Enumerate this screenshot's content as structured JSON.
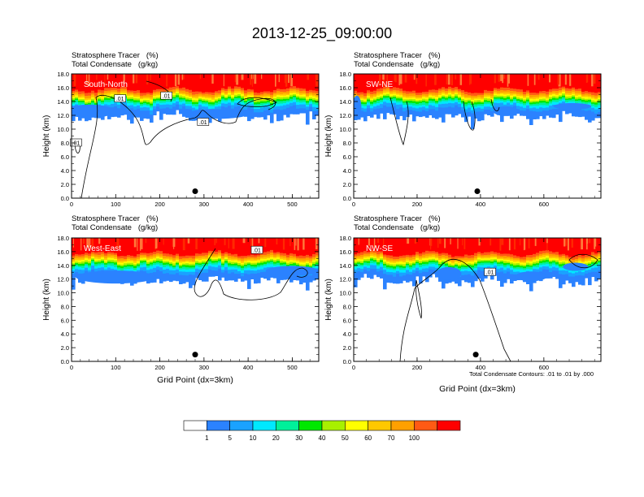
{
  "title": "2013-12-25_09:00:00",
  "colorbar": {
    "labels": [
      "1",
      "5",
      "10",
      "20",
      "30",
      "40",
      "50",
      "60",
      "70",
      "100"
    ],
    "colors": [
      "#ffffff",
      "#2b82ff",
      "#1aa2ff",
      "#00e8ff",
      "#00f09a",
      "#00e800",
      "#a8f000",
      "#ffff00",
      "#ffc800",
      "#ffa000",
      "#ff5a14",
      "#ff0000"
    ]
  },
  "footnote": "Total Condensate Contours: .01 to .01 by .000",
  "chart_data": [
    {
      "type": "heatmap",
      "label": "South-North",
      "header": [
        "Stratosphere Tracer   (%)",
        "Total Condensate   (g/kg)"
      ],
      "ylabel": "Height (km)",
      "xlabel": "",
      "yticks": [
        "0.0",
        "2.0",
        "4.0",
        "6.0",
        "8.0",
        "10.0",
        "12.0",
        "14.0",
        "16.0",
        "18.0"
      ],
      "ylim": [
        0,
        18
      ],
      "xlim": [
        0,
        560
      ],
      "xticks": [
        0,
        100,
        200,
        300,
        400,
        500
      ],
      "marker": {
        "x": 280,
        "y": 1.0
      },
      "contour_labels": [
        {
          "x": 110,
          "y": 14.4,
          "text": ".01"
        },
        {
          "x": 215,
          "y": 14.8,
          "text": ".01"
        },
        {
          "x": 298,
          "y": 11.0,
          "text": ".01"
        },
        {
          "x": 10,
          "y": 8.0,
          "text": ".01"
        }
      ]
    },
    {
      "type": "heatmap",
      "label": "SW-NE",
      "header": [
        "Stratosphere Tracer   (%)",
        "Total Condensate   (g/kg)"
      ],
      "ylabel": "Height (km)",
      "xlabel": "",
      "yticks": [
        "0.0",
        "2.0",
        "4.0",
        "6.0",
        "8.0",
        "10.0",
        "12.0",
        "14.0",
        "16.0",
        "18.0"
      ],
      "ylim": [
        0,
        18
      ],
      "xlim": [
        0,
        780
      ],
      "xticks": [
        0,
        200,
        400,
        600
      ],
      "marker": {
        "x": 390,
        "y": 1.0
      },
      "contour_labels": []
    },
    {
      "type": "heatmap",
      "label": "West-East",
      "header": [
        "Stratosphere Tracer   (%)",
        "Total Condensate   (g/kg)"
      ],
      "ylabel": "Height (km)",
      "xlabel": "Grid Point (dx=3km)",
      "yticks": [
        "0.0",
        "2.0",
        "4.0",
        "6.0",
        "8.0",
        "10.0",
        "12.0",
        "14.0",
        "16.0",
        "18.0"
      ],
      "ylim": [
        0,
        18
      ],
      "xlim": [
        0,
        560
      ],
      "xticks": [
        0,
        100,
        200,
        300,
        400,
        500
      ],
      "marker": {
        "x": 280,
        "y": 1.0
      },
      "contour_labels": [
        {
          "x": 420,
          "y": 16.2,
          "text": ".01"
        }
      ]
    },
    {
      "type": "heatmap",
      "label": "NW-SE",
      "header": [
        "Stratosphere Tracer   (%)",
        "Total Condensate   (g/kg)"
      ],
      "ylabel": "Height (km)",
      "xlabel": "Grid Point (dx=3km)",
      "yticks": [
        "0.0",
        "2.0",
        "4.0",
        "6.0",
        "8.0",
        "10.0",
        "12.0",
        "14.0",
        "16.0",
        "18.0"
      ],
      "ylim": [
        0,
        18
      ],
      "xlim": [
        0,
        780
      ],
      "xticks": [
        0,
        200,
        400,
        600
      ],
      "marker": {
        "x": 385,
        "y": 1.0
      },
      "contour_labels": [
        {
          "x": 430,
          "y": 13.0,
          "text": ".01"
        }
      ]
    }
  ]
}
